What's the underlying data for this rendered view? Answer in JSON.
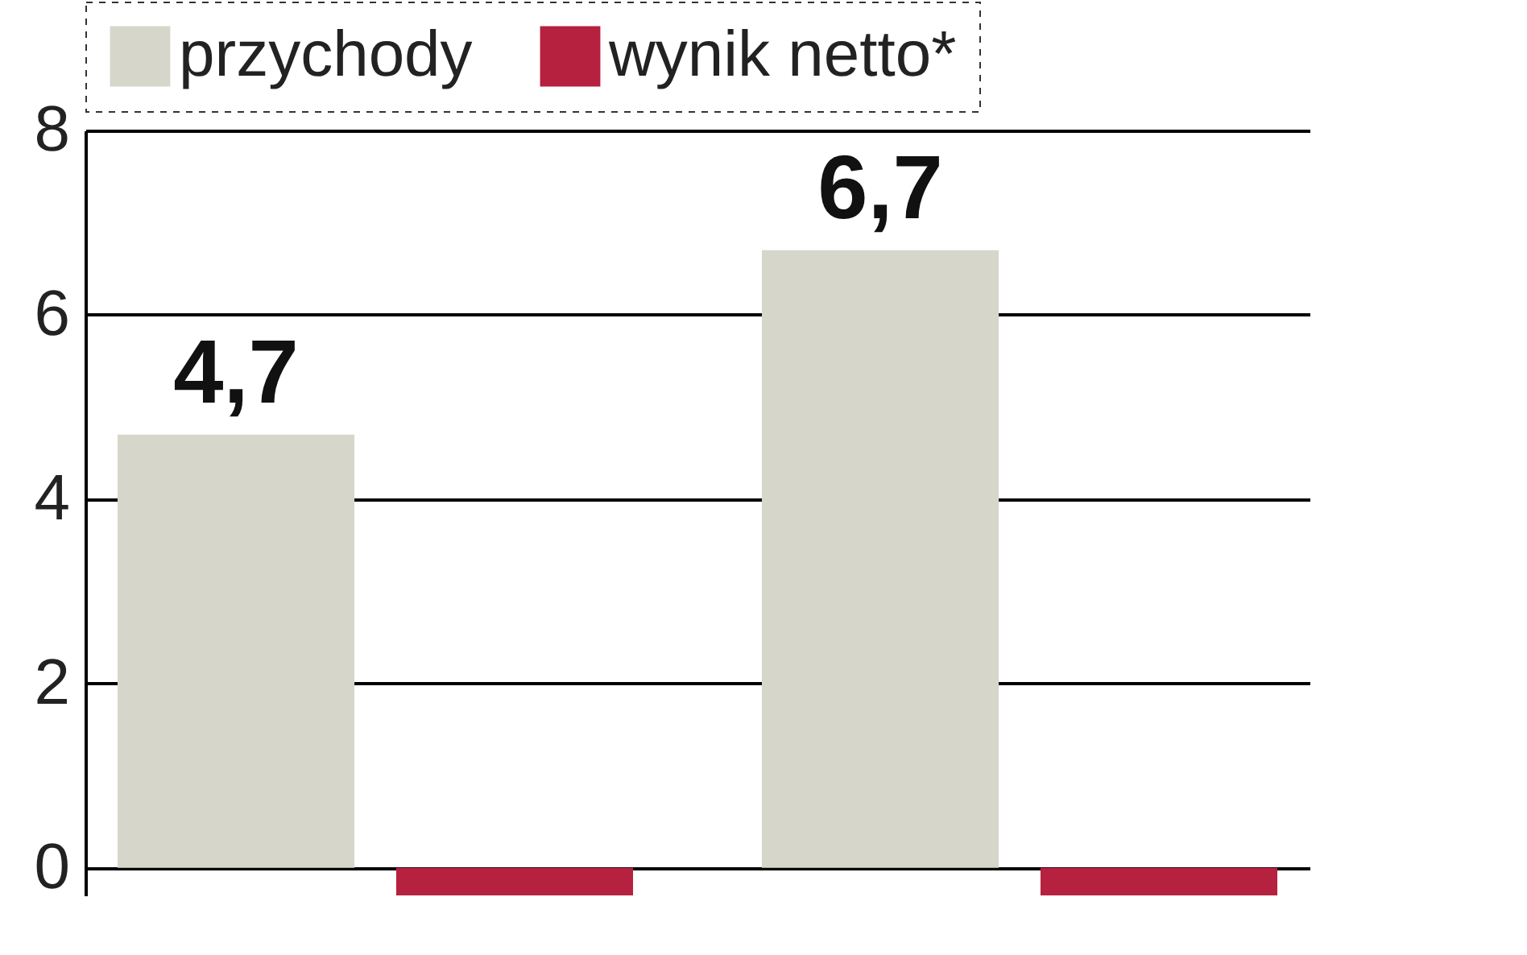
{
  "chart_data": {
    "type": "bar",
    "categories": [
      null,
      null
    ],
    "series": [
      {
        "name": "przychody",
        "color": "#d6d6cb",
        "values": [
          4.7,
          6.7
        ],
        "value_labels": [
          "4,7",
          "6,7"
        ]
      },
      {
        "name": "wynik netto*",
        "color": "#b5213f",
        "values": [
          -0.3,
          -0.3
        ]
      }
    ],
    "ylim": [
      -0.3,
      8
    ],
    "yticks": [
      0,
      2,
      4,
      6,
      8
    ],
    "grid": "y",
    "legend": "top",
    "tick_labels": "y"
  }
}
